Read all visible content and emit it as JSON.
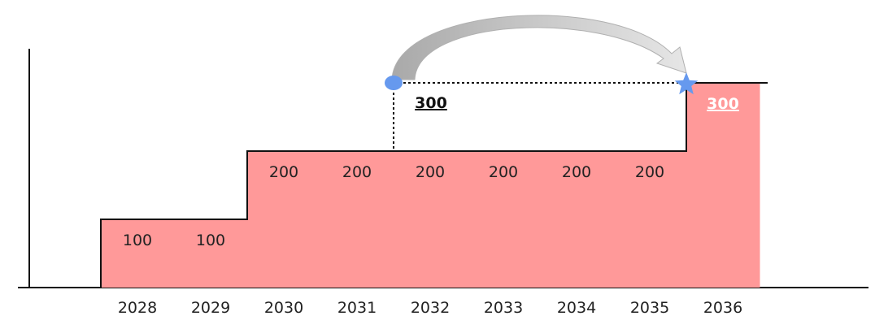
{
  "chart_data": {
    "type": "area",
    "categories": [
      "2028",
      "2029",
      "2030",
      "2031",
      "2032",
      "2033",
      "2034",
      "2035",
      "2036"
    ],
    "values": [
      100,
      100,
      200,
      200,
      200,
      200,
      200,
      200,
      300
    ],
    "value_labels": [
      "100",
      "100",
      "200",
      "200",
      "200",
      "200",
      "200",
      "200",
      "300"
    ],
    "ylim": [
      0,
      300
    ],
    "annotation": {
      "label": "300",
      "from_year": "2031.5",
      "to_year": "2035.5",
      "value": 300
    },
    "colors": {
      "fill": "#ff9999",
      "outline": "#111111",
      "arrow": "#bdbdbd",
      "start_marker": "#6699ee",
      "star_marker": "#6699ee",
      "label_on_fill": "#ffffff"
    },
    "xlabel": "",
    "ylabel": "",
    "title": "",
    "grid": false,
    "legend": "none"
  }
}
